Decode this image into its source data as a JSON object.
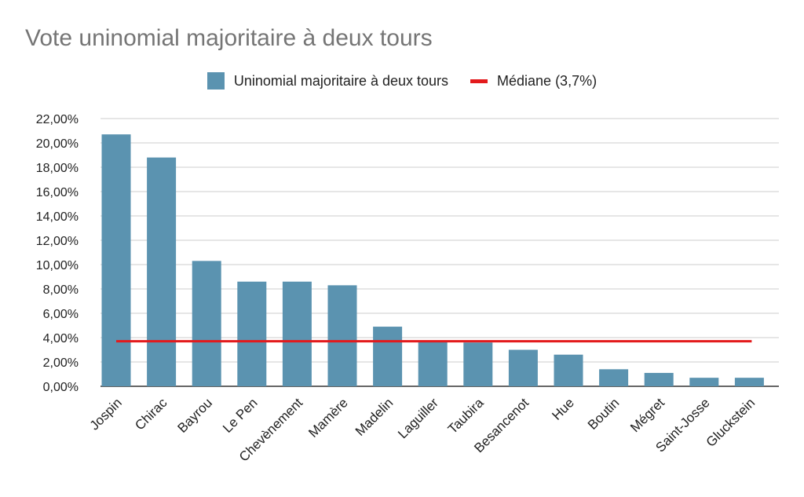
{
  "chart_data": {
    "type": "bar",
    "title": "Vote uninomial majoritaire à deux tours",
    "xlabel": "",
    "ylabel": "",
    "categories": [
      "Jospin",
      "Chirac",
      "Bayrou",
      "Le Pen",
      "Chevènement",
      "Mamère",
      "Madelin",
      "Laguiller",
      "Taubira",
      "Besancenot",
      "Hue",
      "Boutin",
      "Mégret",
      "Saint-Josse",
      "Gluckstein"
    ],
    "series": [
      {
        "name": "Uninomial majoritaire à deux tours",
        "color": "#5b93b0",
        "values": [
          20.7,
          18.8,
          10.3,
          8.6,
          8.6,
          8.3,
          4.9,
          3.7,
          3.6,
          3.0,
          2.6,
          1.4,
          1.1,
          0.7,
          0.7
        ]
      }
    ],
    "reference_line": {
      "name": "Médiane (3,7%)",
      "color": "#e31a1c",
      "value": 3.7
    },
    "ylim": [
      0,
      22
    ],
    "yticks": [
      0,
      2,
      4,
      6,
      8,
      10,
      12,
      14,
      16,
      18,
      20,
      22
    ],
    "ytick_labels": [
      "0,00%",
      "2,00%",
      "4,00%",
      "6,00%",
      "8,00%",
      "10,00%",
      "12,00%",
      "14,00%",
      "16,00%",
      "18,00%",
      "20,00%",
      "22,00%"
    ],
    "grid": true,
    "legend_position": "top-center"
  }
}
